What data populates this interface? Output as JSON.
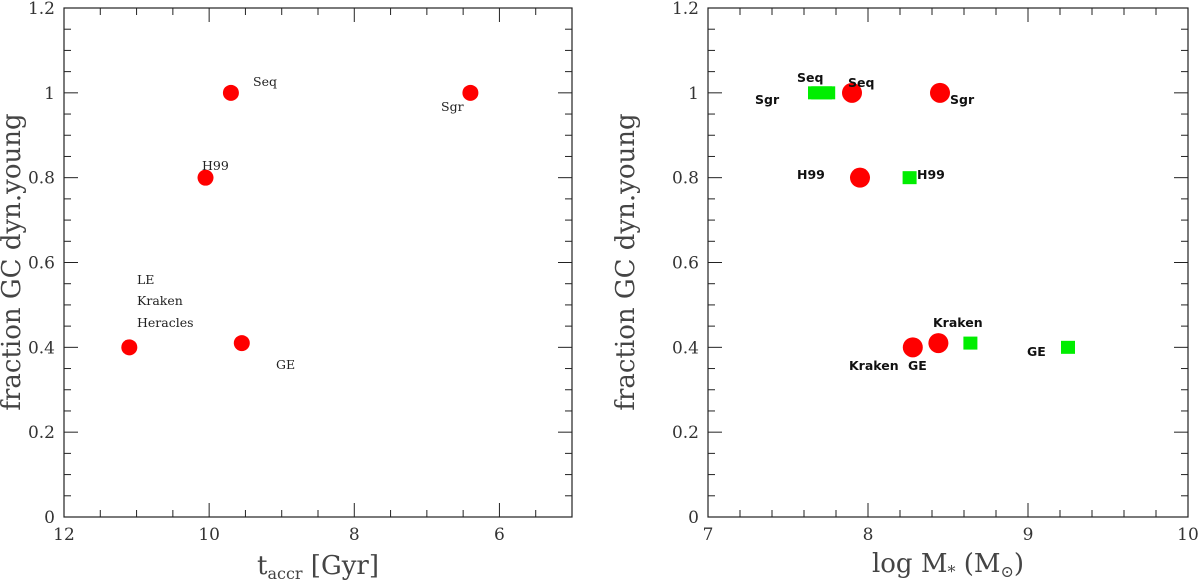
{
  "chart_data": [
    {
      "type": "scatter",
      "xlabel_main": "t",
      "xlabel_sub": "accr",
      "xlabel_unit": " [Gyr]",
      "ylabel": "fraction GC dyn.young",
      "xlim": [
        12,
        5
      ],
      "ylim": [
        0,
        1.2
      ],
      "xticks_major": [
        12,
        10,
        8,
        6
      ],
      "xtick_labels": [
        "12",
        "10",
        "8",
        "6"
      ],
      "yticks_major": [
        0,
        0.2,
        0.4,
        0.6,
        0.8,
        1,
        1.2
      ],
      "ytick_labels": [
        "0",
        "0.2",
        "0.4",
        "0.6",
        "0.8",
        "1",
        "1.2"
      ],
      "colors": {
        "circle": "#ff0000"
      },
      "series": [
        {
          "marker": "circle",
          "points": [
            {
              "x": 9.7,
              "y": 1.0,
              "label": "Seq"
            },
            {
              "x": 6.4,
              "y": 1.0,
              "label": "Sgr"
            },
            {
              "x": 10.05,
              "y": 0.8,
              "label": "H99"
            },
            {
              "x": 9.55,
              "y": 0.41,
              "label": "GE"
            },
            {
              "x": 11.1,
              "y": 0.4,
              "label": ""
            }
          ]
        }
      ],
      "annotations": [
        "LE",
        "Kraken",
        "Heracles"
      ]
    },
    {
      "type": "scatter",
      "xlabel_main": "log M",
      "xlabel_sub": "*",
      "xlabel_unit": " (M",
      "xlabel_sun": "⊙",
      "xlabel_close": ")",
      "ylabel": "fraction GC dyn.young",
      "xlim": [
        7,
        10
      ],
      "ylim": [
        0,
        1.2
      ],
      "xticks_major": [
        7,
        8,
        9,
        10
      ],
      "xtick_labels": [
        "7",
        "8",
        "9",
        "10"
      ],
      "yticks_major": [
        0,
        0.2,
        0.4,
        0.6,
        0.8,
        1,
        1.2
      ],
      "ytick_labels": [
        "0",
        "0.2",
        "0.4",
        "0.6",
        "0.8",
        "1",
        "1.2"
      ],
      "colors": {
        "circle": "#ff0000",
        "square": "#00ee00"
      },
      "series": [
        {
          "marker": "circle",
          "points": [
            {
              "x": 7.9,
              "y": 1.0,
              "label": "Seq"
            },
            {
              "x": 8.45,
              "y": 1.0,
              "label": "Sgr"
            },
            {
              "x": 7.95,
              "y": 0.8,
              "label": "H99"
            },
            {
              "x": 8.28,
              "y": 0.4,
              "label": "Kraken"
            },
            {
              "x": 8.44,
              "y": 0.41,
              "label": "GE"
            }
          ]
        },
        {
          "marker": "square",
          "points": [
            {
              "x": 7.72,
              "y": 1.0,
              "label": "Sgr"
            },
            {
              "x": 7.7,
              "y": 1.0,
              "label": "Seq"
            },
            {
              "x": 8.26,
              "y": 0.8,
              "label": "H99"
            },
            {
              "x": 8.64,
              "y": 0.41,
              "label": "Kraken"
            },
            {
              "x": 9.25,
              "y": 0.4,
              "label": "GE"
            }
          ]
        }
      ]
    }
  ]
}
